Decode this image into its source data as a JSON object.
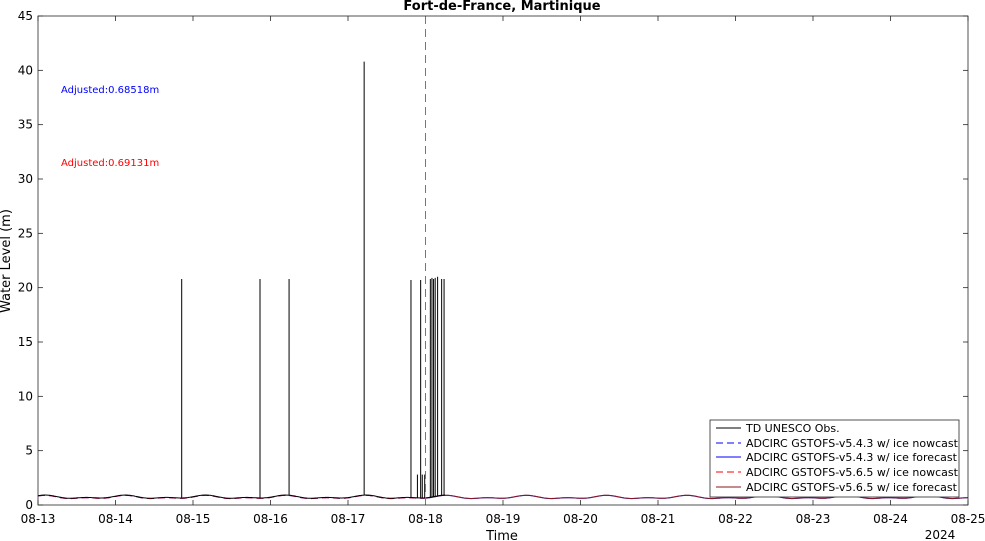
{
  "chart_data": {
    "type": "line",
    "title": "Fort-de-France, Martinique",
    "xlabel": "Time",
    "ylabel": "Water Level (m)",
    "x_tick_labels": [
      "08-13",
      "08-14",
      "08-15",
      "08-16",
      "08-17",
      "08-18",
      "08-19",
      "08-20",
      "08-21",
      "08-22",
      "08-23",
      "08-24",
      "08-25"
    ],
    "x_year_label": "2024",
    "xlim": [
      "2024-08-13",
      "2024-08-25"
    ],
    "ylim": [
      0,
      45
    ],
    "y_ticks": [
      0,
      5,
      10,
      15,
      20,
      25,
      30,
      35,
      40,
      45
    ],
    "nowcast_forecast_divider": "2024-08-18",
    "annotations": [
      {
        "text": "Adjusted:0.68518m",
        "color": "#0000ff"
      },
      {
        "text": "Adjusted:0.69131m",
        "color": "#ff0000"
      }
    ],
    "legend_position": "bottom-right",
    "series": [
      {
        "name": "TD UNESCO Obs.",
        "color": "#000000",
        "style": "solid",
        "baseline_range": [
          "2024-08-13",
          "2024-08-18 06:00"
        ],
        "spikes": [
          {
            "x": "2024-08-14 20:30",
            "y": 20.8
          },
          {
            "x": "2024-08-15 20:45",
            "y": 20.8
          },
          {
            "x": "2024-08-16 05:45",
            "y": 20.8
          },
          {
            "x": "2024-08-17 05:00",
            "y": 40.8
          },
          {
            "x": "2024-08-17 19:30",
            "y": 20.7
          },
          {
            "x": "2024-08-17 21:30",
            "y": 2.8
          },
          {
            "x": "2024-08-17 22:30",
            "y": 20.7
          },
          {
            "x": "2024-08-17 23:00",
            "y": 2.8
          },
          {
            "x": "2024-08-17 23:45",
            "y": 2.8
          },
          {
            "x": "2024-08-18 01:30",
            "y": 20.8
          },
          {
            "x": "2024-08-18 02:00",
            "y": 20.9
          },
          {
            "x": "2024-08-18 02:30",
            "y": 20.8
          },
          {
            "x": "2024-08-18 03:00",
            "y": 20.9
          },
          {
            "x": "2024-08-18 03:45",
            "y": 21.0
          },
          {
            "x": "2024-08-18 05:00",
            "y": 20.8
          },
          {
            "x": "2024-08-18 05:45",
            "y": 20.8
          }
        ]
      },
      {
        "name": "ADCIRC GSTOFS-v5.4.3 w/ ice nowcast",
        "color": "#0000ff",
        "style": "dashed",
        "range": [
          "2024-08-13",
          "2024-08-18"
        ]
      },
      {
        "name": "ADCIRC GSTOFS-v5.4.3 w/ ice forecast",
        "color": "#0000ff",
        "style": "solid",
        "range": [
          "2024-08-18",
          "2024-08-25"
        ]
      },
      {
        "name": "ADCIRC GSTOFS-v5.6.5 w/ ice nowcast",
        "color": "#ff0000",
        "style": "dashed",
        "range": [
          "2024-08-13",
          "2024-08-18"
        ]
      },
      {
        "name": "ADCIRC GSTOFS-v5.6.5 w/ ice forecast",
        "color": "#8b1a1a",
        "style": "solid",
        "range": [
          "2024-08-18",
          "2024-08-25"
        ]
      }
    ],
    "tide_mean_m": 0.7,
    "tide_amplitude_m": 0.17
  }
}
